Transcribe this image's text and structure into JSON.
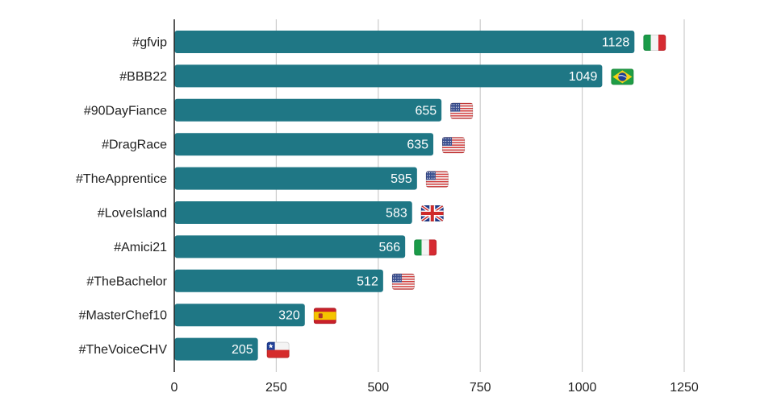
{
  "chart_data": {
    "type": "bar",
    "orientation": "horizontal",
    "title": "",
    "xlabel": "",
    "ylabel": "",
    "xlim": [
      0,
      1250
    ],
    "xticks": [
      0,
      250,
      500,
      750,
      1000,
      1250
    ],
    "grid": true,
    "categories": [
      "#gfvip",
      "#BBB22",
      "#90DayFiance",
      "#DragRace",
      "#TheApprentice",
      "#LoveIsland",
      "#Amici21",
      "#TheBachelor",
      "#MasterChef10",
      "#TheVoiceCHV"
    ],
    "values": [
      1128,
      1049,
      655,
      635,
      595,
      583,
      566,
      512,
      320,
      205
    ],
    "value_labels": [
      "1128",
      "1049",
      "655",
      "635",
      "595",
      "583",
      "566",
      "512",
      "320",
      "205"
    ],
    "flags": [
      "italy-flag-icon",
      "brazil-flag-icon",
      "usa-flag-icon",
      "usa-flag-icon",
      "usa-flag-icon",
      "uk-flag-icon",
      "italy-flag-icon",
      "usa-flag-icon",
      "spain-flag-icon",
      "chile-flag-icon"
    ]
  },
  "colors": {
    "bar": "#1f7785",
    "grid": "#cccccc",
    "axis": "#222222"
  }
}
